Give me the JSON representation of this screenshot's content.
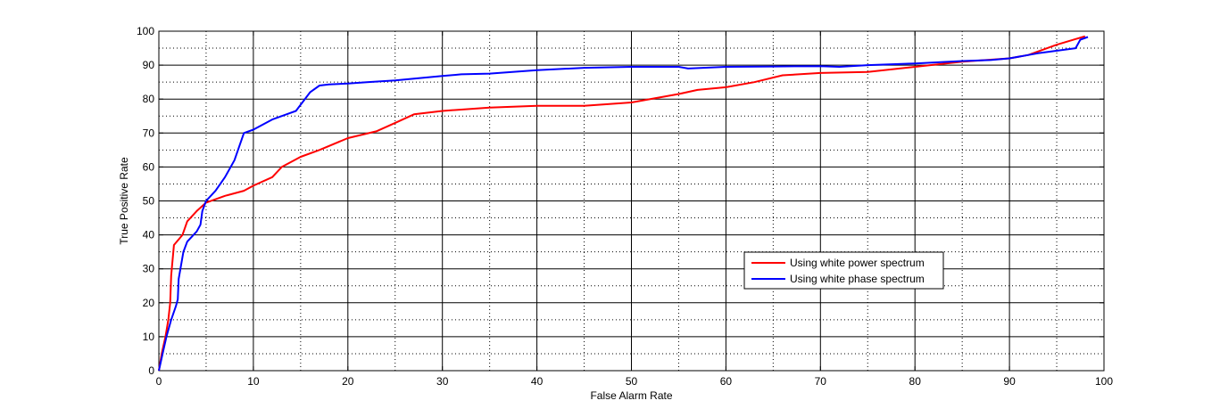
{
  "chart_data": {
    "type": "line",
    "title": "",
    "xlabel": "False Alarm Rate",
    "ylabel": "True Positive Rate",
    "xlim": [
      0,
      100
    ],
    "ylim": [
      0,
      100
    ],
    "x_ticks": [
      0,
      10,
      20,
      30,
      40,
      50,
      60,
      70,
      80,
      90,
      100
    ],
    "y_ticks": [
      0,
      10,
      20,
      30,
      40,
      50,
      60,
      70,
      80,
      90,
      100
    ],
    "grid": "major solid, minor dotted",
    "legend_position": "lower-right",
    "series": [
      {
        "name": "Using white power spectrum",
        "color": "#ff0000",
        "points": [
          [
            0,
            0
          ],
          [
            0.3,
            5
          ],
          [
            0.7,
            10
          ],
          [
            1.0,
            15
          ],
          [
            1.2,
            20
          ],
          [
            1.3,
            28
          ],
          [
            1.6,
            37
          ],
          [
            2.5,
            40
          ],
          [
            3.0,
            44
          ],
          [
            4.0,
            47
          ],
          [
            5.0,
            49.5
          ],
          [
            7.0,
            51.5
          ],
          [
            9.0,
            53
          ],
          [
            10.0,
            54.5
          ],
          [
            12.0,
            57
          ],
          [
            13.0,
            60
          ],
          [
            15.0,
            63
          ],
          [
            17.0,
            65
          ],
          [
            20.0,
            68.5
          ],
          [
            23.0,
            70.5
          ],
          [
            25.0,
            73
          ],
          [
            27.0,
            75.5
          ],
          [
            30.0,
            76.5
          ],
          [
            35.0,
            77.5
          ],
          [
            40.0,
            78
          ],
          [
            45.0,
            78
          ],
          [
            50.0,
            79
          ],
          [
            55.0,
            81.5
          ],
          [
            57.0,
            82.7
          ],
          [
            60.0,
            83.5
          ],
          [
            63.0,
            85
          ],
          [
            66.0,
            87
          ],
          [
            70.0,
            87.7
          ],
          [
            75.0,
            88
          ],
          [
            80.0,
            89.5
          ],
          [
            85.0,
            91
          ],
          [
            90.0,
            92
          ],
          [
            92.0,
            93
          ],
          [
            95.0,
            96
          ],
          [
            98.0,
            98.5
          ]
        ]
      },
      {
        "name": "Using white phase spectrum",
        "color": "#0000ff",
        "points": [
          [
            0,
            0
          ],
          [
            0.4,
            5
          ],
          [
            0.8,
            10
          ],
          [
            1.3,
            15
          ],
          [
            1.8,
            19
          ],
          [
            2.0,
            21
          ],
          [
            2.1,
            27
          ],
          [
            2.6,
            35
          ],
          [
            3.0,
            38
          ],
          [
            4.0,
            41
          ],
          [
            4.4,
            43
          ],
          [
            4.6,
            47
          ],
          [
            5.0,
            50
          ],
          [
            6.0,
            53
          ],
          [
            7.0,
            57
          ],
          [
            8.0,
            62
          ],
          [
            9.0,
            70
          ],
          [
            10.0,
            71
          ],
          [
            12.0,
            74
          ],
          [
            14.5,
            76.5
          ],
          [
            16.0,
            82
          ],
          [
            17.0,
            84
          ],
          [
            18.0,
            84.3
          ],
          [
            20.0,
            84.6
          ],
          [
            22.0,
            85
          ],
          [
            25.0,
            85.5
          ],
          [
            30.0,
            86.8
          ],
          [
            32.0,
            87.3
          ],
          [
            35.0,
            87.5
          ],
          [
            40.0,
            88.5
          ],
          [
            45.0,
            89.2
          ],
          [
            50.0,
            89.5
          ],
          [
            55.0,
            89.5
          ],
          [
            56.0,
            89
          ],
          [
            60.0,
            89.5
          ],
          [
            65.0,
            89.6
          ],
          [
            70.0,
            89.7
          ],
          [
            72.0,
            89.5
          ],
          [
            75.0,
            90
          ],
          [
            80.0,
            90.5
          ],
          [
            85.0,
            91.2
          ],
          [
            88.0,
            91.5
          ],
          [
            90.0,
            92
          ],
          [
            93.0,
            93.5
          ],
          [
            97.0,
            95
          ],
          [
            97.5,
            97.5
          ],
          [
            98.3,
            98.3
          ]
        ]
      }
    ]
  }
}
